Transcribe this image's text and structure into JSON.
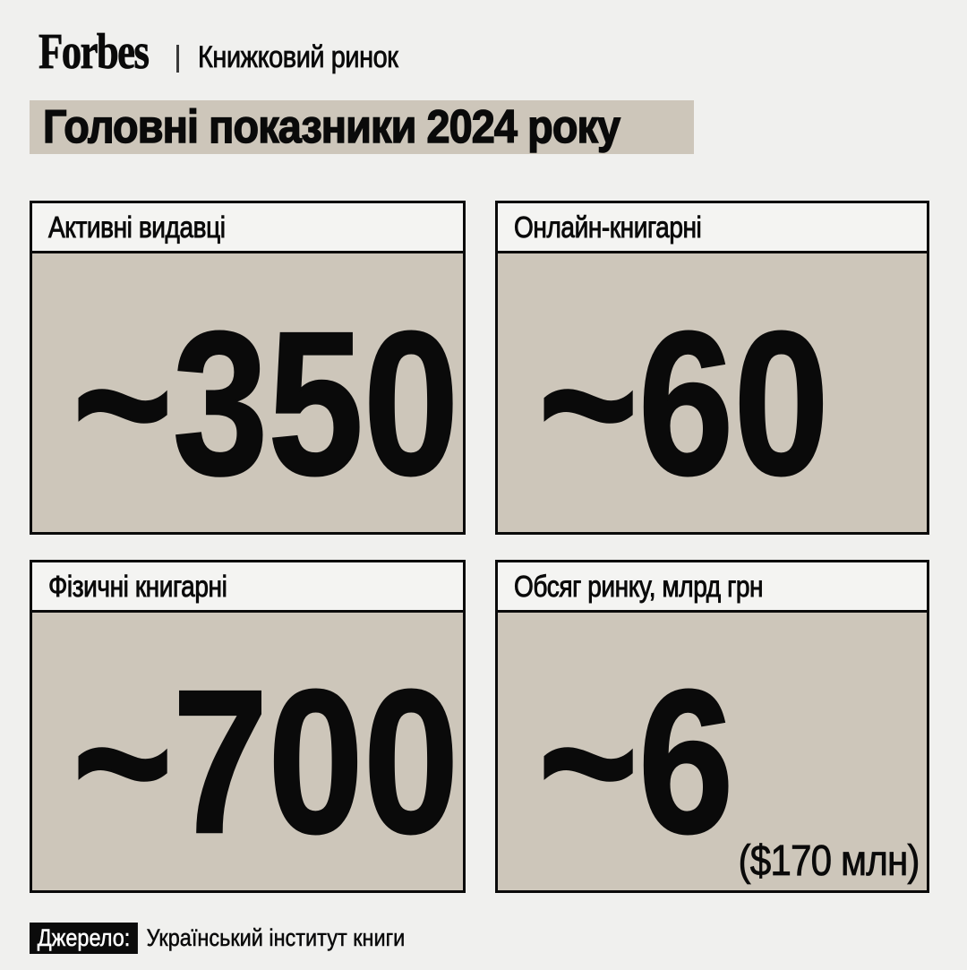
{
  "brand": {
    "logo": "Forbes",
    "tagline": "Книжковий ринок"
  },
  "title": "Головні показники 2024 року",
  "cards": [
    {
      "label": "Активні видавці",
      "value": "~350"
    },
    {
      "label": "Онлайн-книгарні",
      "value": "~60"
    },
    {
      "label": "Фізичні книгарні",
      "value": "~700"
    },
    {
      "label": "Обсяг ринку, млрд грн",
      "value": "~6",
      "note": "($170 млн)"
    }
  ],
  "source": {
    "label": "Джерело:",
    "text": "Український інститут книги"
  },
  "colors": {
    "background": "#f0f0ee",
    "card_fill": "#cdc6ba",
    "card_header": "#f4f4f2",
    "border": "#0a0a0a",
    "text": "#0a0a0a",
    "chip_bg": "#0b0b0b",
    "chip_text": "#ffffff"
  },
  "chart_data": {
    "type": "table",
    "title": "Головні показники 2024 року",
    "subtitle": "Книжковий ринок",
    "categories": [
      "Активні видавці",
      "Онлайн-книгарні",
      "Фізичні книгарні",
      "Обсяг ринку, млрд грн"
    ],
    "values": [
      350,
      60,
      700,
      6
    ],
    "value_labels": [
      "~350",
      "~60",
      "~700",
      "~6 ($170 млн)"
    ],
    "approximate": true,
    "units": [
      "видавці",
      "книгарні",
      "книгарні",
      "млрд грн"
    ],
    "usd_equivalent_market_volume": "$170 млн",
    "source": "Джерело: Український інститут книги",
    "legend_position": "none",
    "grid": false
  }
}
